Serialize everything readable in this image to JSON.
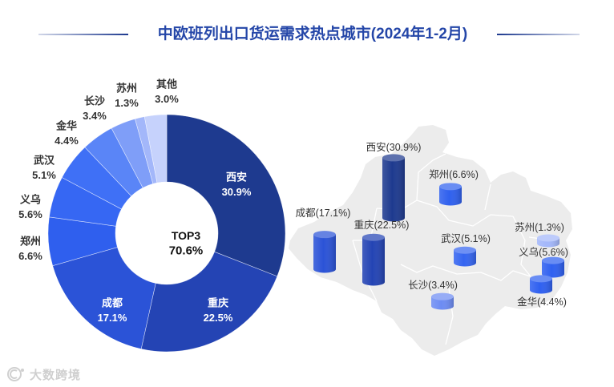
{
  "chart_data": {
    "type": "pie",
    "title": "中欧班列出口货运需求热点城市(2024年1-2月)",
    "categories": [
      "西安",
      "重庆",
      "成都",
      "郑州",
      "义乌",
      "武汉",
      "金华",
      "长沙",
      "苏州",
      "其他"
    ],
    "values": [
      30.9,
      22.5,
      17.1,
      6.6,
      5.6,
      5.1,
      4.4,
      3.4,
      1.3,
      3.0
    ],
    "unit": "%",
    "colors": [
      "#1e3a8f",
      "#2444b4",
      "#2b53d7",
      "#2f5fee",
      "#3667f3",
      "#3f70f6",
      "#5a85f7",
      "#7f9ef8",
      "#a3b7fa",
      "#c6d2fc"
    ],
    "center_label": "TOP3",
    "center_value": "70.6%",
    "map_cities": [
      {
        "name": "西安",
        "value": 30.9,
        "color": "#1e3a8f"
      },
      {
        "name": "郑州",
        "value": 6.6,
        "color": "#2f60ee"
      },
      {
        "name": "成都",
        "value": 17.1,
        "color": "#2b53d7"
      },
      {
        "name": "重庆",
        "value": 22.5,
        "color": "#2444b4"
      },
      {
        "name": "武汉",
        "value": 5.1,
        "color": "#3565f0"
      },
      {
        "name": "长沙",
        "value": 3.4,
        "color": "#6d8cf3"
      },
      {
        "name": "苏州",
        "value": 1.3,
        "color": "#a3b7fa"
      },
      {
        "name": "义乌",
        "value": 5.6,
        "color": "#2f60f0"
      },
      {
        "name": "金华",
        "value": 4.4,
        "color": "#2f60f0"
      }
    ]
  },
  "watermark": {
    "text": "大数跨境"
  }
}
